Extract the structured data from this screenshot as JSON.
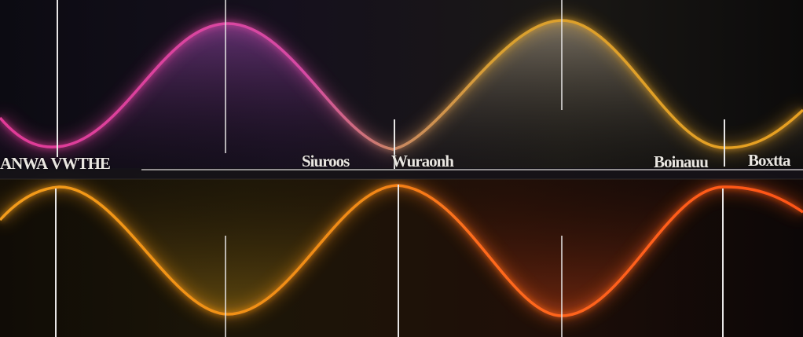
{
  "labels": {
    "left": "ANWA VWTHE",
    "mid_a": "Siuroos",
    "mid_b": "Wuraonh",
    "right_a": "Boinauu",
    "right_b": "Boxtta"
  },
  "colors": {
    "background": "#0a090d",
    "upper_wave_left": "#e0379a",
    "upper_wave_right": "#e8a020",
    "lower_wave_left": "#f0a21a",
    "lower_wave_right": "#ff5a1a",
    "marker_line": "#e8e6e6",
    "divider": "#d9d6d3"
  }
}
